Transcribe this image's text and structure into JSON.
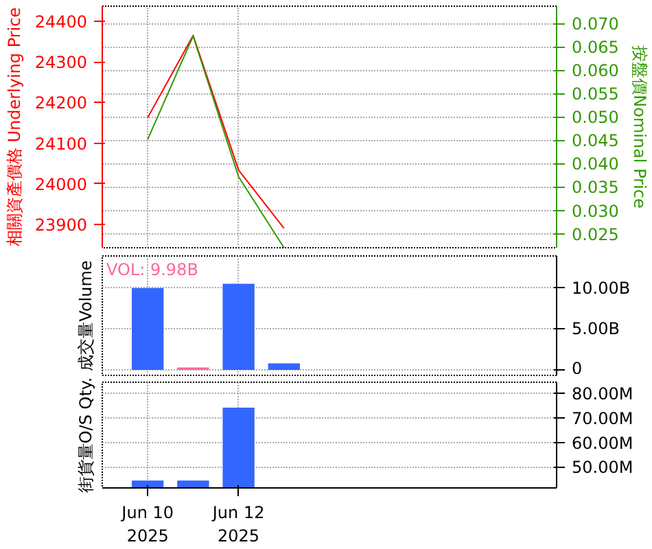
{
  "chart_data": [
    {
      "type": "line",
      "x": [
        "2025-06-10",
        "2025-06-11",
        "2025-06-12",
        "2025-06-13"
      ],
      "series": [
        {
          "color": "#ff0000",
          "values": [
            24163,
            24365,
            24034,
            23891
          ]
        },
        {
          "color": "#339900",
          "values": [
            0.0452,
            0.0673,
            0.0372,
            0.022
          ],
          "axis": "y2"
        }
      ],
      "ylabel": "相關資產價格 Underlying Price",
      "y2label": "按盤價Nominal Price",
      "xlim": [
        "2025-06-09",
        "2025-06-19"
      ],
      "xticks": [
        {
          "value": "2025-06-10",
          "label": null
        },
        {
          "value": "2025-06-12",
          "label": null
        }
      ],
      "ylim": [
        23843,
        24437
      ],
      "yticks": [
        23900,
        24000,
        24100,
        24200,
        24300,
        24400
      ],
      "y2lim": [
        0.022,
        0.0737
      ],
      "y2ticks": [
        {
          "value": 0.025,
          "label": "0.025"
        },
        {
          "value": 0.03,
          "label": "0.030"
        },
        {
          "value": 0.035,
          "label": "0.035"
        },
        {
          "value": 0.04,
          "label": "0.040"
        },
        {
          "value": 0.045,
          "label": "0.045"
        },
        {
          "value": 0.05,
          "label": "0.050"
        },
        {
          "value": 0.055,
          "label": "0.055"
        },
        {
          "value": 0.06,
          "label": "0.060"
        },
        {
          "value": 0.065,
          "label": "0.065"
        },
        {
          "value": 0.07,
          "label": "0.070"
        }
      ],
      "tick_labels": "y",
      "grid": true
    },
    {
      "type": "bar",
      "x": [
        "2025-06-10",
        "2025-06-11",
        "2025-06-12",
        "2025-06-13"
      ],
      "values": [
        9.98,
        0.3,
        10.5,
        0.8
      ],
      "colors": [
        "#3366ff",
        "#ff6699",
        "#3366ff",
        "#3366ff"
      ],
      "ylabel": "成交量Volume",
      "annotations": [
        "VOL: 9.98B"
      ],
      "xlim": [
        "2025-06-09",
        "2025-06-19"
      ],
      "xticks": [
        {
          "value": "2025-06-10",
          "label": null
        },
        {
          "value": "2025-06-12",
          "label": null
        }
      ],
      "ylim": [
        -0.67,
        13.9
      ],
      "yticks": [
        0,
        {
          "value": 5,
          "label": "5.00B"
        },
        {
          "value": 10,
          "label": "10.00B"
        }
      ],
      "tick_labels": "y",
      "grid": true
    },
    {
      "type": "bar",
      "x": [
        "2025-06-10",
        "2025-06-11",
        "2025-06-12"
      ],
      "values": [
        44.8,
        44.8,
        74.3
      ],
      "color": "#3366ff",
      "ylabel": "街貨量O/S Qty.",
      "xlim": [
        "2025-06-09",
        "2025-06-19"
      ],
      "xticks": [
        {
          "value": "2025-06-10",
          "label": "Jun 10\n2025"
        },
        {
          "value": "2025-06-12",
          "label": "Jun 12\n2025"
        }
      ],
      "ylim": [
        41.8,
        84.6
      ],
      "yticks": [
        {
          "value": 50,
          "label": "50.00M"
        },
        {
          "value": 60,
          "label": "60.00M"
        },
        {
          "value": 70,
          "label": "70.00M"
        },
        {
          "value": 80,
          "label": "80.00M"
        }
      ],
      "grid": true
    }
  ]
}
